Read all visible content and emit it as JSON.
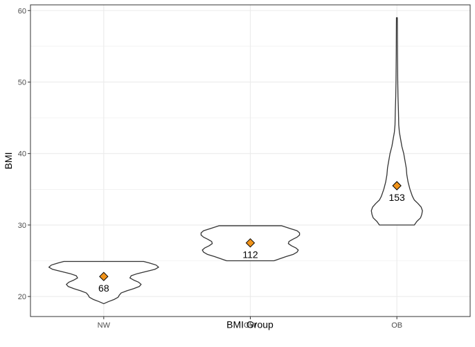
{
  "chart_data": {
    "type": "violin",
    "xlabel": "BMI Group",
    "ylabel": "BMI",
    "ylim": [
      17.2,
      60.8
    ],
    "yticks": [
      20,
      30,
      40,
      50,
      60
    ],
    "grid": true,
    "categories": [
      "NW",
      "OW",
      "OB"
    ],
    "groups": [
      {
        "name": "NW",
        "mean": 22.8,
        "count_label": "68",
        "range": [
          19.0,
          24.9
        ],
        "density": [
          [
            19.0,
            0.0
          ],
          [
            19.3,
            0.08
          ],
          [
            19.6,
            0.17
          ],
          [
            19.9,
            0.23
          ],
          [
            20.2,
            0.25
          ],
          [
            20.5,
            0.28
          ],
          [
            20.8,
            0.37
          ],
          [
            21.1,
            0.48
          ],
          [
            21.4,
            0.57
          ],
          [
            21.7,
            0.6
          ],
          [
            22.0,
            0.56
          ],
          [
            22.3,
            0.48
          ],
          [
            22.6,
            0.42
          ],
          [
            22.9,
            0.44
          ],
          [
            23.2,
            0.54
          ],
          [
            23.5,
            0.68
          ],
          [
            23.8,
            0.82
          ],
          [
            24.1,
            0.88
          ],
          [
            24.4,
            0.84
          ],
          [
            24.7,
            0.73
          ],
          [
            24.9,
            0.64
          ]
        ]
      },
      {
        "name": "OW",
        "mean": 27.5,
        "count_label": "112",
        "range": [
          25.0,
          29.9
        ],
        "density": [
          [
            25.0,
            0.38
          ],
          [
            25.3,
            0.48
          ],
          [
            25.6,
            0.58
          ],
          [
            25.9,
            0.69
          ],
          [
            26.2,
            0.75
          ],
          [
            26.5,
            0.77
          ],
          [
            26.8,
            0.73
          ],
          [
            27.1,
            0.66
          ],
          [
            27.4,
            0.61
          ],
          [
            27.7,
            0.62
          ],
          [
            28.0,
            0.68
          ],
          [
            28.3,
            0.75
          ],
          [
            28.6,
            0.79
          ],
          [
            28.9,
            0.79
          ],
          [
            29.2,
            0.75
          ],
          [
            29.5,
            0.64
          ],
          [
            29.9,
            0.5
          ]
        ]
      },
      {
        "name": "OB",
        "mean": 35.5,
        "count_label": "153",
        "range": [
          30.0,
          59.0
        ],
        "density": [
          [
            30.0,
            0.28
          ],
          [
            30.5,
            0.32
          ],
          [
            31.0,
            0.38
          ],
          [
            31.5,
            0.4
          ],
          [
            32.0,
            0.41
          ],
          [
            32.5,
            0.39
          ],
          [
            33.0,
            0.34
          ],
          [
            33.5,
            0.28
          ],
          [
            34.0,
            0.25
          ],
          [
            35.0,
            0.21
          ],
          [
            36.0,
            0.18
          ],
          [
            37.0,
            0.16
          ],
          [
            38.0,
            0.15
          ],
          [
            39.0,
            0.13
          ],
          [
            40.0,
            0.11
          ],
          [
            41.0,
            0.08
          ],
          [
            42.0,
            0.06
          ],
          [
            43.0,
            0.04
          ],
          [
            44.0,
            0.03
          ],
          [
            46.0,
            0.025
          ],
          [
            48.0,
            0.018
          ],
          [
            50.0,
            0.014
          ],
          [
            52.0,
            0.012
          ],
          [
            54.0,
            0.01
          ],
          [
            56.0,
            0.009
          ],
          [
            58.0,
            0.008
          ],
          [
            59.0,
            0.007
          ]
        ]
      }
    ],
    "colors": {
      "mean_marker": "#f0931a",
      "outline": "#333333",
      "grid": "#ebebeb",
      "panel_border": "#333333"
    }
  }
}
